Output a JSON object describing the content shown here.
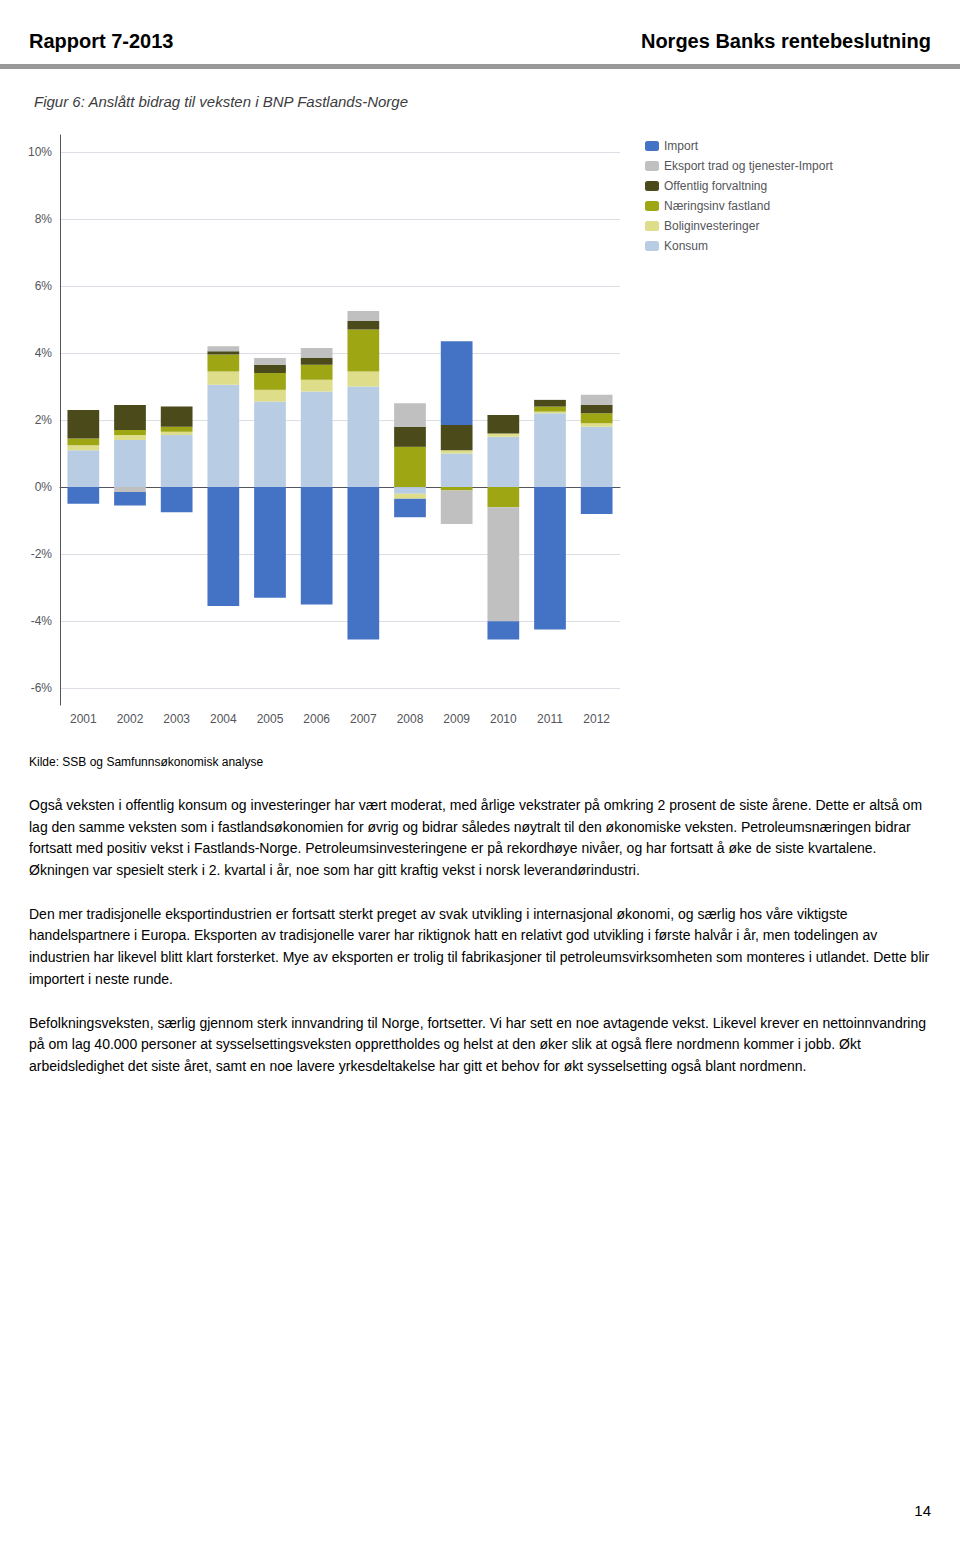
{
  "header": [
    "Rapport 7-2013",
    "Norges Banks rentebeslutning"
  ],
  "paragraphs": [
    "Også veksten i offentlig konsum og investeringer har vært moderat, med årlige vekstrater på omkring 2 prosent de siste årene. Dette er altså om lag den samme veksten som i fastlandsøkonomien for øvrig og bidrar således nøytralt til den økonomiske veksten. Petroleumsnæringen bidrar fortsatt med positiv vekst i Fastlands-Norge. Petroleumsinvesteringene er på rekordhøye nivåer, og har fortsatt å øke de siste kvartalene. Økningen var spesielt sterk i 2. kvartal i år, noe som har gitt kraftig vekst i norsk leverandørindustri.",
    "Den mer tradisjonelle eksportindustrien er fortsatt sterkt preget av svak utvikling i internasjonal økonomi, og særlig hos våre viktigste handelspartnere i Europa. Eksporten av tradisjonelle varer har riktignok hatt en relativt god utvikling i første halvår i år, men todelingen av industrien har likevel blitt klart forsterket. Mye av eksporten er trolig til fabrikasjoner til petroleumsvirksomheten som monteres i utlandet. Dette blir importert i neste runde.",
    "Befolkningsveksten, særlig gjennom sterk innvandring til Norge, fortsetter. Vi har sett en noe avtagende vekst. Likevel krever en nettoinnvandring på om lag 40.000 personer at sysselsettingsveksten opprettholdes og helst at den øker slik at også flere nordmenn kommer i jobb. Økt arbeidsledighet det siste året, samt en noe lavere yrkesdeltakelse har gitt et behov for økt sysselsetting også blant nordmenn."
  ],
  "page_number": "14",
  "chart_data": {
    "type": "bar",
    "stacked": true,
    "title": "Figur 6: Anslått bidrag til veksten i BNP Fastlands-Norge",
    "source": "Kilde: SSB og Samfunnsøkonomisk analyse",
    "categories": [
      "2001",
      "2002",
      "2003",
      "2004",
      "2005",
      "2006",
      "2007",
      "2008",
      "2009",
      "2010",
      "2011",
      "2012"
    ],
    "series": [
      {
        "name": "Konsum",
        "color": "#B8CCE4",
        "values": [
          1.1,
          1.4,
          1.55,
          3.05,
          2.55,
          2.85,
          3.0,
          -0.2,
          1.0,
          1.5,
          2.2,
          1.8
        ]
      },
      {
        "name": "Boliginvesteringer",
        "color": "#DEDE8A",
        "values": [
          0.15,
          0.15,
          0.1,
          0.4,
          0.35,
          0.35,
          0.45,
          -0.15,
          0.1,
          0.1,
          0.05,
          0.1
        ]
      },
      {
        "name": "Næringsinv fastland",
        "color": "#9EA614",
        "values": [
          0.2,
          0.15,
          0.15,
          0.5,
          0.5,
          0.45,
          1.25,
          1.2,
          -0.1,
          -0.6,
          0.15,
          0.3
        ]
      },
      {
        "name": "Offentlig forvaltning",
        "color": "#4A4A1A",
        "values": [
          0.85,
          0.75,
          0.6,
          0.1,
          0.25,
          0.2,
          0.25,
          0.6,
          0.75,
          0.55,
          0.2,
          0.25
        ]
      },
      {
        "name": "Eksport trad og tjenester-Import",
        "color": "#C0C0C0",
        "values": [
          0.0,
          -0.15,
          0.0,
          0.15,
          0.2,
          0.3,
          0.3,
          0.7,
          -1.0,
          -3.4,
          0.0,
          0.3
        ]
      },
      {
        "name": "Import",
        "color": "#4472C4",
        "values": [
          -0.5,
          -0.4,
          -0.75,
          -3.55,
          -3.3,
          -3.5,
          -4.55,
          -0.55,
          2.5,
          -0.55,
          -4.25,
          -0.8
        ]
      }
    ],
    "ylim": [
      -6.5,
      10.5
    ],
    "yticks": [
      {
        "value": -6,
        "label": "-6%"
      },
      {
        "value": -4,
        "label": "-4%"
      },
      {
        "value": -2,
        "label": "-2%"
      },
      {
        "value": 0,
        "label": "0%"
      },
      {
        "value": 2,
        "label": "2%"
      },
      {
        "value": 4,
        "label": "4%"
      },
      {
        "value": 6,
        "label": "6%"
      },
      {
        "value": 8,
        "label": "8%"
      },
      {
        "value": 10,
        "label": "10%"
      }
    ],
    "grid": true,
    "legend": "right"
  }
}
